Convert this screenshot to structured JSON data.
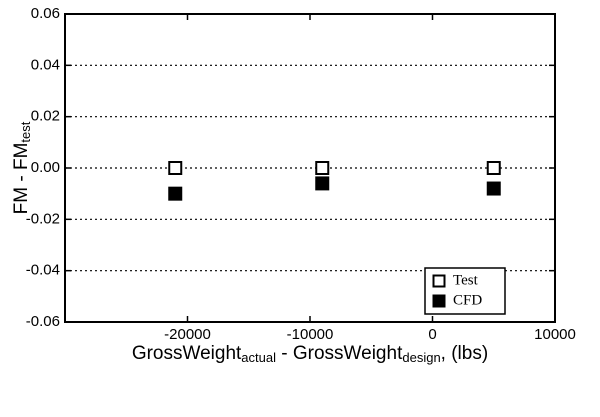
{
  "chart_data": {
    "type": "scatter",
    "x_label": [
      "GrossWeight",
      "actual",
      " - GrossWeight",
      "design",
      ", (lbs)"
    ],
    "y_label": [
      "FM - FM",
      "test"
    ],
    "xlim": [
      -30000,
      10000
    ],
    "xticks": [
      -20000,
      -10000,
      0,
      10000
    ],
    "ylim": [
      -0.06,
      0.06
    ],
    "yticks": [
      {
        "value": -0.06,
        "label": "-0.06"
      },
      {
        "value": -0.04,
        "label": "-0.04"
      },
      {
        "value": -0.02,
        "label": "-0.02"
      },
      {
        "value": 0,
        "label": "0.00"
      },
      {
        "value": 0.02,
        "label": "0.02"
      },
      {
        "value": 0.04,
        "label": "0.04"
      },
      {
        "value": 0.06,
        "label": "0.06"
      }
    ],
    "grid": true,
    "legend": "lower right",
    "series": [
      {
        "name": "Test",
        "color": "#000000",
        "marker": "open-square",
        "x": [
          -21000,
          -9000,
          5000
        ],
        "values": [
          0,
          0,
          0
        ]
      },
      {
        "name": "CFD",
        "color": "#000000",
        "marker": "filled-square",
        "x": [
          -21000,
          -9000,
          5000
        ],
        "values": [
          -0.01,
          -0.006,
          -0.008
        ]
      }
    ]
  }
}
